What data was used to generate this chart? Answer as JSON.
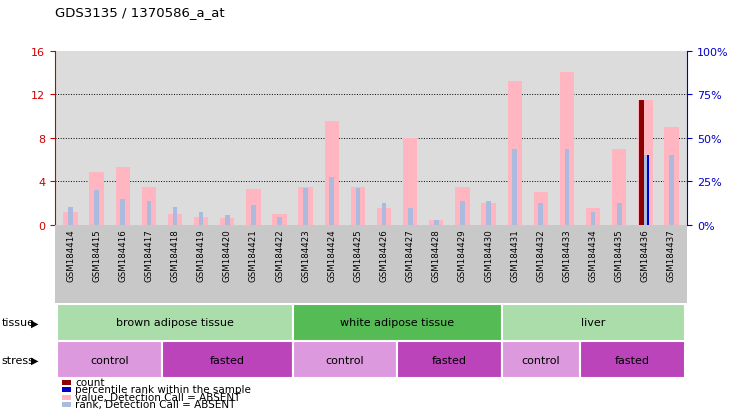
{
  "title": "GDS3135 / 1370586_a_at",
  "samples": [
    "GSM184414",
    "GSM184415",
    "GSM184416",
    "GSM184417",
    "GSM184418",
    "GSM184419",
    "GSM184420",
    "GSM184421",
    "GSM184422",
    "GSM184423",
    "GSM184424",
    "GSM184425",
    "GSM184426",
    "GSM184427",
    "GSM184428",
    "GSM184429",
    "GSM184430",
    "GSM184431",
    "GSM184432",
    "GSM184433",
    "GSM184434",
    "GSM184435",
    "GSM184436",
    "GSM184437"
  ],
  "value_absent": [
    1.2,
    4.8,
    5.3,
    3.5,
    1.0,
    0.7,
    0.6,
    3.3,
    1.0,
    3.5,
    9.5,
    3.5,
    1.5,
    8.0,
    0.4,
    3.5,
    2.0,
    13.2,
    3.0,
    14.0,
    1.5,
    7.0,
    11.5,
    9.0
  ],
  "rank_absent": [
    1.6,
    3.2,
    2.4,
    2.2,
    1.6,
    1.2,
    0.9,
    1.8,
    0.7,
    3.4,
    4.4,
    3.4,
    2.0,
    1.5,
    0.4,
    2.2,
    2.2,
    7.0,
    2.0,
    7.0,
    1.2,
    2.0,
    6.4,
    6.4
  ],
  "count": [
    0,
    0,
    0,
    0,
    0,
    0,
    0,
    0,
    0,
    0,
    0,
    0,
    0,
    0,
    0,
    0,
    0,
    0,
    0,
    0,
    0,
    0,
    11.5,
    0
  ],
  "percentile_rank": [
    0,
    0,
    0,
    0,
    0,
    0,
    0,
    0,
    0,
    0,
    0,
    0,
    0,
    0,
    0,
    0,
    0,
    0,
    0,
    0,
    0,
    0,
    6.4,
    0
  ],
  "color_value_absent": "#FFB6C1",
  "color_rank_absent": "#AABBDD",
  "color_count": "#8B0000",
  "color_percentile": "#0000CD",
  "left_ylim": [
    0,
    16
  ],
  "right_ylim": [
    0,
    100
  ],
  "left_yticks": [
    0,
    4,
    8,
    12,
    16
  ],
  "right_yticks": [
    0,
    25,
    50,
    75,
    100
  ],
  "left_ycolor": "#CC0000",
  "right_ycolor": "#0000CC",
  "tissue_groups": [
    {
      "label": "brown adipose tissue",
      "start": 0,
      "end": 9,
      "color": "#90EE90"
    },
    {
      "label": "white adipose tissue",
      "start": 9,
      "end": 17,
      "color": "#66DD66"
    },
    {
      "label": "liver",
      "start": 17,
      "end": 24,
      "color": "#90EE90"
    }
  ],
  "stress_groups": [
    {
      "label": "control",
      "start": 0,
      "end": 4,
      "color": "#DD88DD"
    },
    {
      "label": "fasted",
      "start": 4,
      "end": 9,
      "color": "#CC44CC"
    },
    {
      "label": "control",
      "start": 9,
      "end": 13,
      "color": "#DD88DD"
    },
    {
      "label": "fasted",
      "start": 13,
      "end": 17,
      "color": "#CC44CC"
    },
    {
      "label": "control",
      "start": 17,
      "end": 20,
      "color": "#DD88DD"
    },
    {
      "label": "fasted",
      "start": 20,
      "end": 24,
      "color": "#CC44CC"
    }
  ],
  "legend_items": [
    {
      "color": "#8B0000",
      "label": "count"
    },
    {
      "color": "#0000CD",
      "label": "percentile rank within the sample"
    },
    {
      "color": "#FFB6C1",
      "label": "value, Detection Call = ABSENT"
    },
    {
      "color": "#AABBDD",
      "label": "rank, Detection Call = ABSENT"
    }
  ]
}
